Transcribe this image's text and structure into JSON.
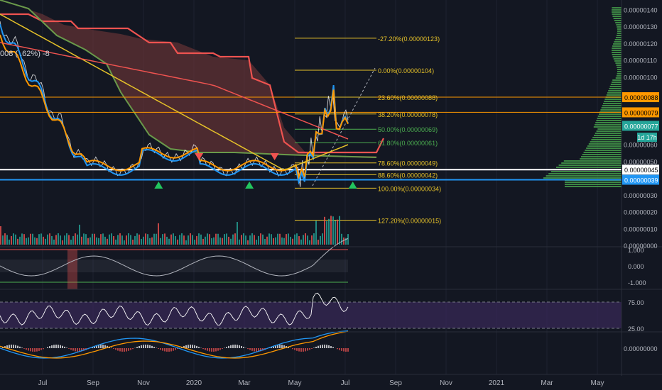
{
  "legend": {
    "text": "008 ( .62%) -8"
  },
  "price_axis": {
    "ticks": [
      "0.00000140",
      "0.00000130",
      "0.00000120",
      "0.00000110",
      "0.00000100",
      "0.00000060",
      "0.00000050",
      "0.00000030",
      "0.00000020",
      "0.00000010",
      "0.00000000"
    ],
    "markers": [
      {
        "label": "0.00000088",
        "color": "#ff9800",
        "text_color": "#000000"
      },
      {
        "label": "0.00000079",
        "color": "#ff9800",
        "text_color": "#000000"
      },
      {
        "label": "0.00000077",
        "color": "#26a69a",
        "text_color": "#ffffff"
      },
      {
        "label": "1d 17h",
        "color": "#26a69a",
        "text_color": "#ffffff"
      },
      {
        "label": "0.00000045",
        "color": "#ffffff",
        "text_color": "#000000"
      },
      {
        "label": "0.00000039",
        "color": "#2196f3",
        "text_color": "#ffffff"
      }
    ]
  },
  "oscillator_axis": {
    "ticks": [
      "1.000",
      "0.000",
      "-1.000"
    ]
  },
  "rsi_axis": {
    "ticks": [
      "75.00",
      "25.00"
    ]
  },
  "macd_axis": {
    "ticks": [
      "0.00000000"
    ]
  },
  "time_axis": {
    "labels": [
      "Jul",
      "Sep",
      "Nov",
      "2020",
      "Mar",
      "May",
      "Jul",
      "Sep",
      "Nov",
      "2021",
      "Mar",
      "May"
    ]
  },
  "chart_data": {
    "type": "line",
    "fib_levels": [
      {
        "ratio": "-27.20%",
        "price": "0.00000123",
        "label": "-27.20%(0.00000123)",
        "color": "#e6c229"
      },
      {
        "ratio": "0.00%",
        "price": "0.00000104",
        "label": "0.00%(0.00000104)",
        "color": "#e6c229"
      },
      {
        "ratio": "23.60%",
        "price": "0.00000088",
        "label": "23.60%(0.00000088)",
        "color": "#e6c229"
      },
      {
        "ratio": "38.20%",
        "price": "0.00000078",
        "label": "38.20%(0.00000078)",
        "color": "#e6c229"
      },
      {
        "ratio": "50.00%",
        "price": "0.00000069",
        "label": "50.00%(0.00000069)",
        "color": "#4caf50"
      },
      {
        "ratio": "61.80%",
        "price": "0.00000061",
        "label": "61.80%(0.00000061)",
        "color": "#4caf50"
      },
      {
        "ratio": "78.60%",
        "price": "0.00000049",
        "label": "78.60%(0.00000049)",
        "color": "#e6c229"
      },
      {
        "ratio": "88.60%",
        "price": "0.00000042",
        "label": "88.60%(0.00000042)",
        "color": "#e6c229"
      },
      {
        "ratio": "100.00%",
        "price": "0.00000034",
        "label": "100.00%(0.00000034)",
        "color": "#e6c229"
      },
      {
        "ratio": "127.20%",
        "price": "0.00000015",
        "label": "127.20%(0.00000015)",
        "color": "#e6c229"
      }
    ],
    "horizontal_lines": [
      {
        "price": 8.8e-07,
        "color": "#ff9800"
      },
      {
        "price": 7.9e-07,
        "color": "#ff9800"
      },
      {
        "price": 4.5e-07,
        "color": "#ffffff"
      },
      {
        "price": 3.9e-07,
        "color": "#2196f3"
      }
    ],
    "price_range": [
      0.0,
      1.45e-06
    ],
    "last_price": "0.00000077",
    "signals": [
      {
        "type": "buy",
        "t": 7.6
      },
      {
        "type": "sell",
        "t": 9.2
      },
      {
        "type": "buy",
        "t": 11.2
      },
      {
        "type": "sell",
        "t": 12.2
      },
      {
        "type": "buy",
        "t": 15.3
      }
    ],
    "colors": {
      "up": "#26a69a",
      "down": "#ef5350",
      "cloud": "#7b3a3a",
      "ma_fast": "#2196f3",
      "ma_mid": "#ff9800",
      "ma_slow": "#e6c229",
      "ma_long": "#ef5350",
      "cloud_edge": "#6a9a4a"
    }
  }
}
